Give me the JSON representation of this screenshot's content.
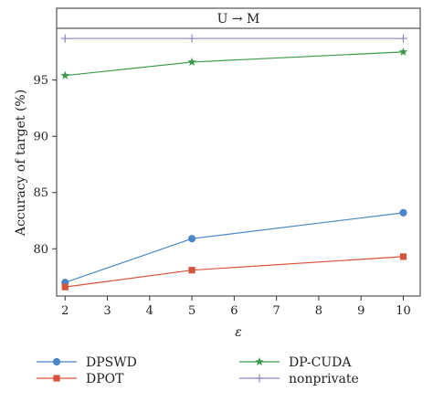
{
  "chart_data": {
    "type": "line",
    "title": "U → M",
    "xlabel": "ε",
    "ylabel": "Accuracy of target (%)",
    "x": [
      2,
      5,
      10
    ],
    "xlim": [
      1.8,
      10.4
    ],
    "ylim": [
      75.8,
      99.6
    ],
    "xticks": [
      2,
      3,
      4,
      5,
      6,
      7,
      8,
      9,
      10
    ],
    "yticks": [
      80,
      85,
      90,
      95
    ],
    "grid": false,
    "legend_position": "bottom",
    "series": [
      {
        "name": "DPSWD",
        "values": [
          77.0,
          80.9,
          83.2
        ],
        "color": "#4a86c8",
        "marker": "circle"
      },
      {
        "name": "DPOT",
        "values": [
          76.6,
          78.1,
          79.3
        ],
        "color": "#d9533c",
        "marker": "square"
      },
      {
        "name": "DP-CUDA",
        "values": [
          95.4,
          96.6,
          97.5
        ],
        "color": "#3a9a4a",
        "marker": "star"
      },
      {
        "name": "nonprivate",
        "values": [
          98.7,
          98.7,
          98.7
        ],
        "color": "#8b86c6",
        "marker": "plus"
      }
    ]
  }
}
